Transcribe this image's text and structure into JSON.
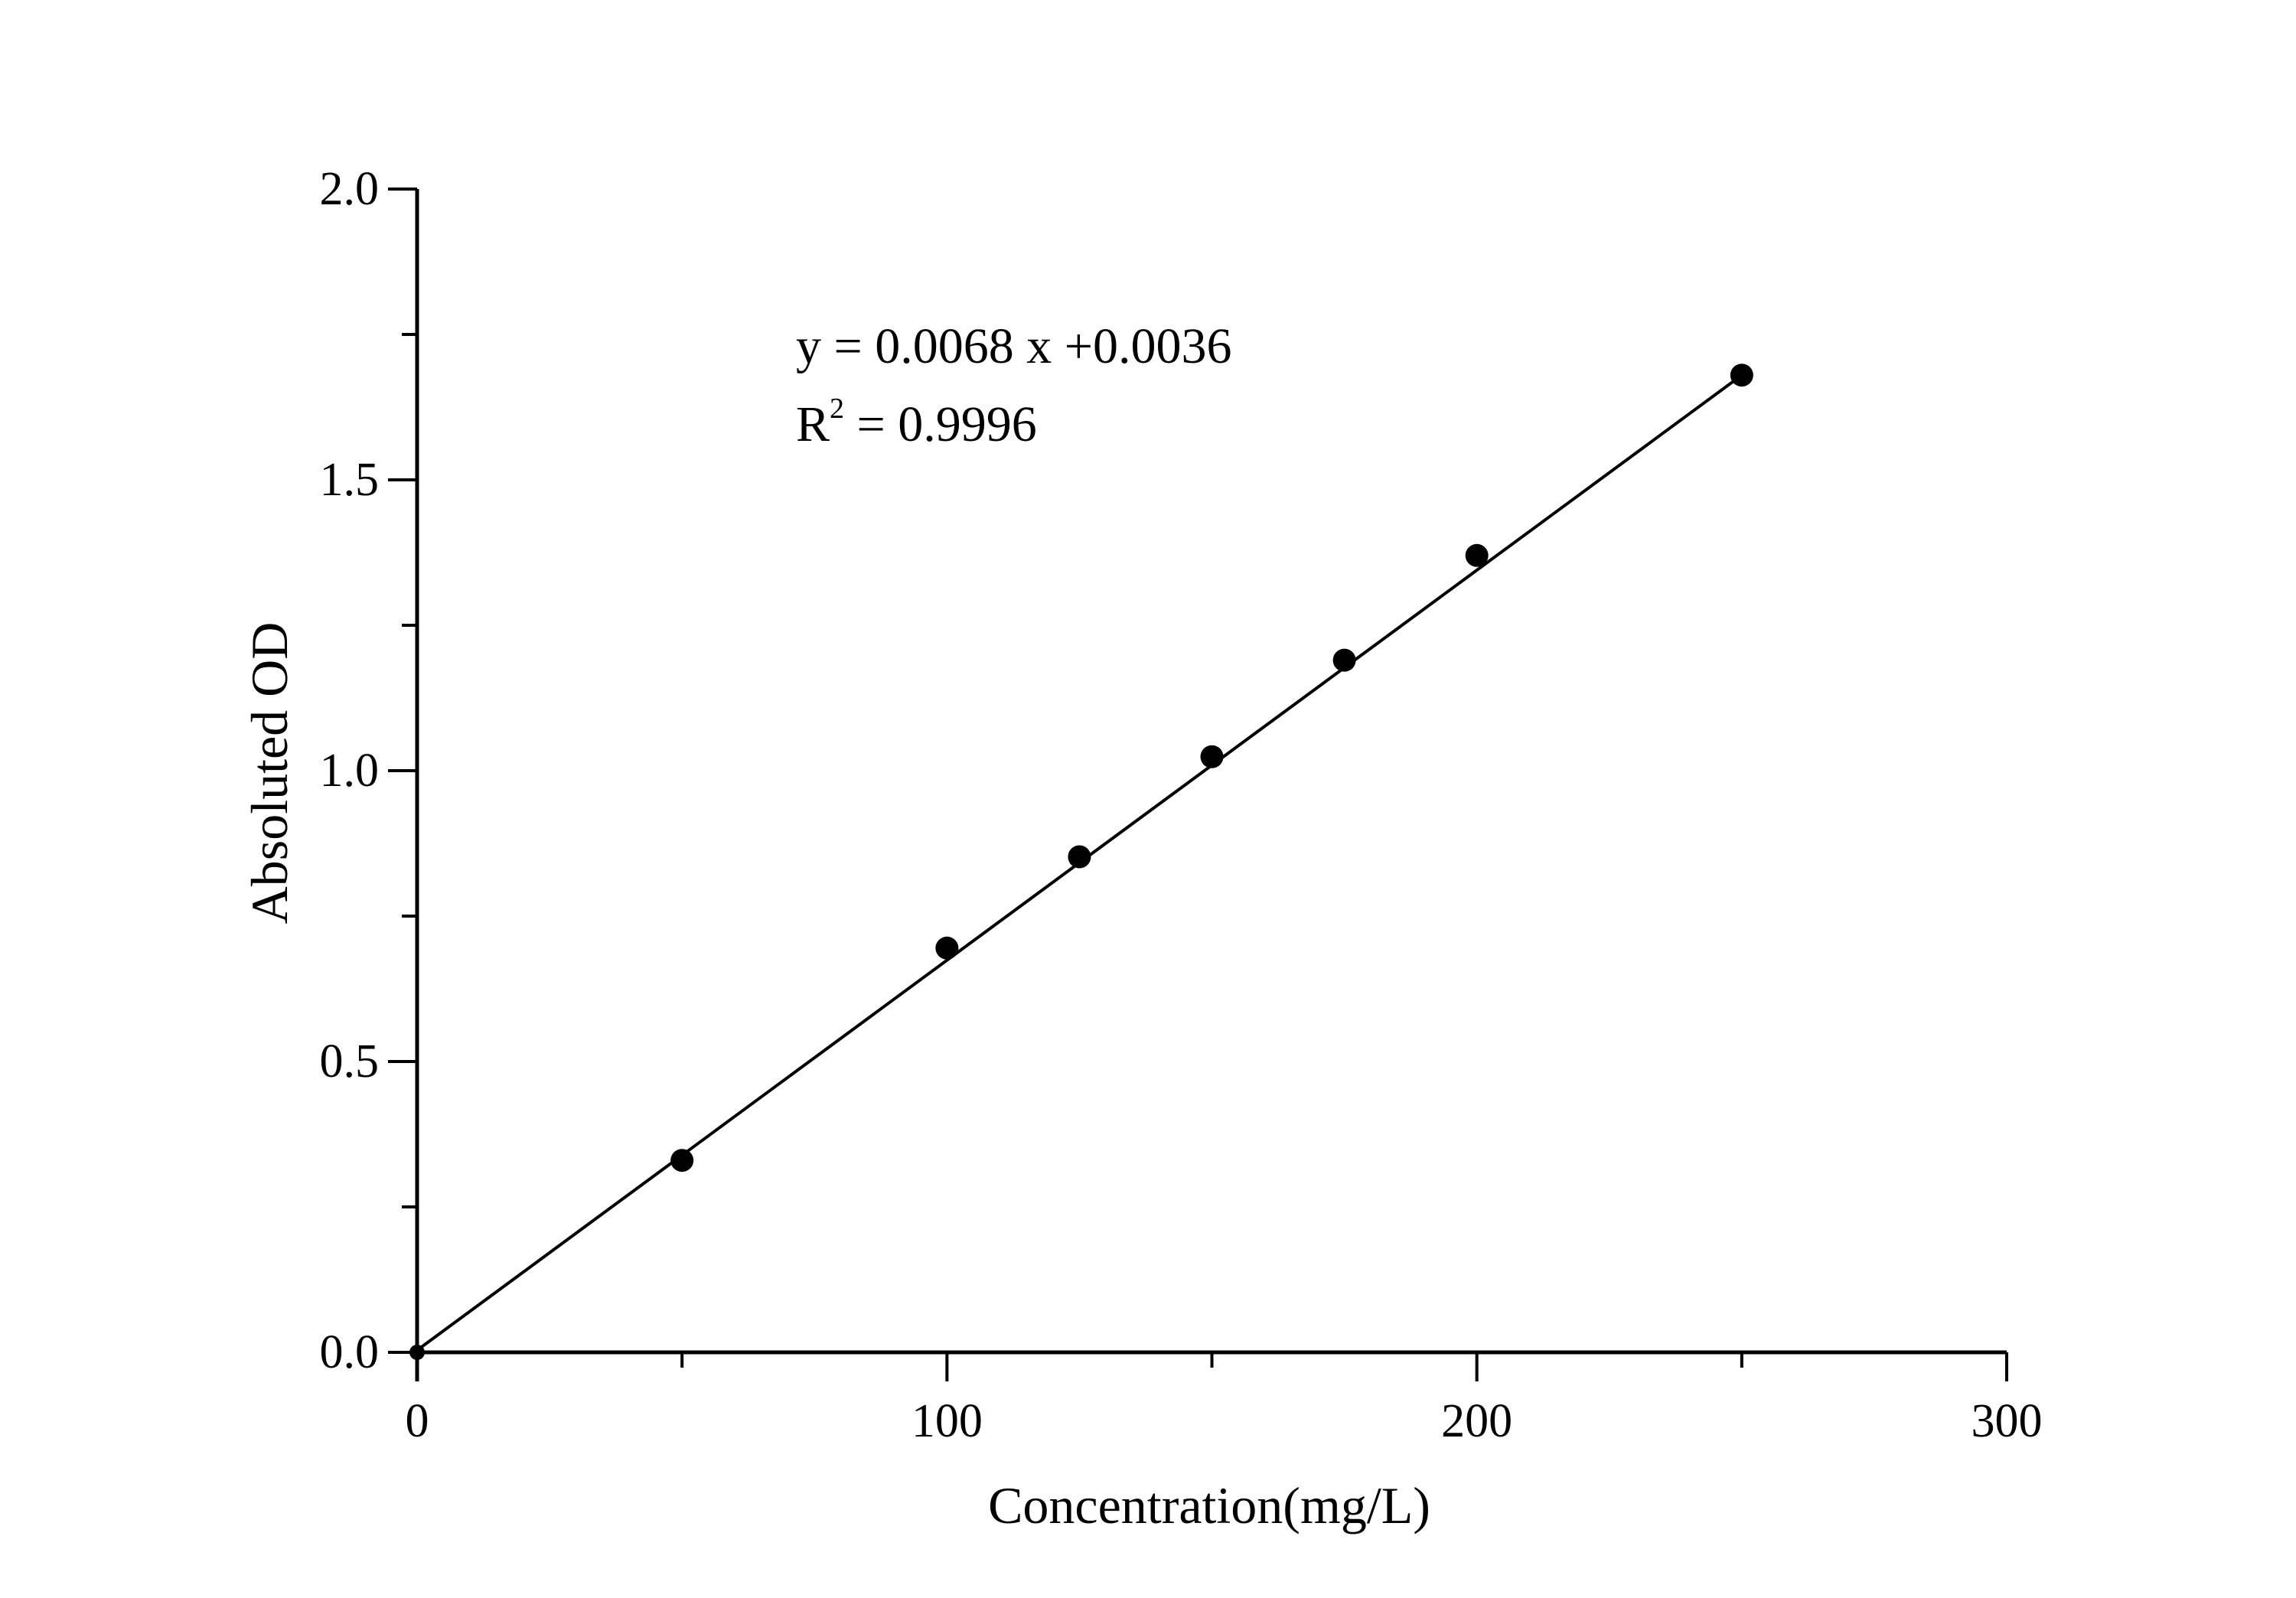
{
  "chart_data": {
    "type": "scatter",
    "title": "",
    "xlabel": "Concentration(mg/L)",
    "ylabel": "Absoluted OD",
    "xlim": [
      0,
      300
    ],
    "ylim": [
      0,
      2.0
    ],
    "x_ticks": [
      "0",
      "100",
      "200",
      "300"
    ],
    "y_ticks": [
      "0.0",
      "0.5",
      "1.0",
      "1.5",
      "2.0"
    ],
    "grid": false,
    "legend": "none",
    "series": [
      {
        "x": [
          0,
          50,
          100,
          125,
          150,
          175,
          200,
          250
        ],
        "y": [
          0.0,
          0.33,
          0.695,
          0.852,
          1.024,
          1.19,
          1.37,
          1.68
        ],
        "marker": "filled-circle",
        "color": "#000000"
      }
    ],
    "fit_line": {
      "slope": 0.0068,
      "intercept": 0.0036,
      "x_range": [
        0,
        250
      ]
    },
    "annotations": {
      "equation": "y = 0.0068 x +0.0036",
      "r2_prefix": "R",
      "r2_sup": "2",
      "r2_value": " = 0.9996"
    }
  }
}
